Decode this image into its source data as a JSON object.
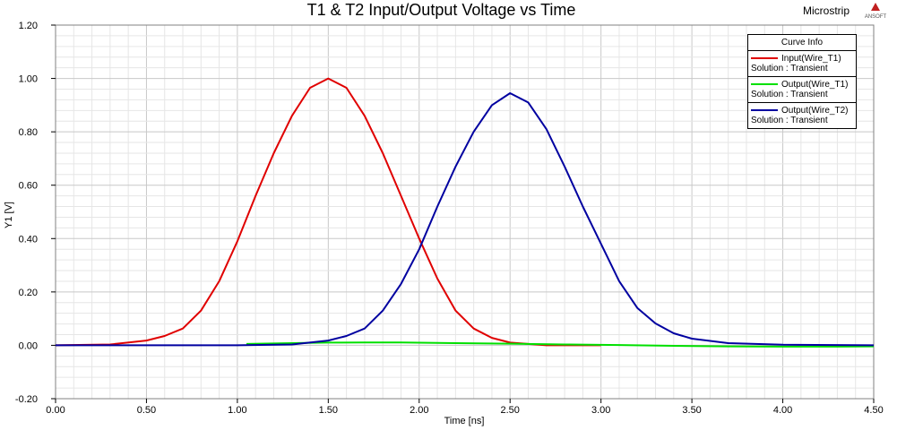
{
  "header": {
    "project": "Microstrip",
    "logo_text": "ANSOFT"
  },
  "legend": {
    "title": "Curve Info",
    "items": [
      {
        "label": "Input(Wire_T1)",
        "solution": "Solution : Transient",
        "color": "#e00000"
      },
      {
        "label": "Output(Wire_T1)",
        "solution": "Solution : Transient",
        "color": "#00e000"
      },
      {
        "label": "Output(Wire_T2)",
        "solution": "Solution : Transient",
        "color": "#0000a0"
      }
    ]
  },
  "chart_data": {
    "type": "line",
    "title": "T1 & T2 Input/Output Voltage vs Time",
    "xlabel": "Time [ns]",
    "ylabel": "Y1 [V]",
    "xlim": [
      0.0,
      4.5
    ],
    "ylim": [
      -0.2,
      1.2
    ],
    "xticks": [
      "0.00",
      "0.50",
      "1.00",
      "1.50",
      "2.00",
      "2.50",
      "3.00",
      "3.50",
      "4.00",
      "4.50"
    ],
    "yticks": [
      "-0.20",
      "0.00",
      "0.20",
      "0.40",
      "0.60",
      "0.80",
      "1.00",
      "1.20"
    ],
    "grid": true,
    "legend_position": "top-right",
    "series": [
      {
        "name": "Input(Wire_T1)",
        "color": "#e00000",
        "x": [
          0.0,
          0.3,
          0.5,
          0.6,
          0.7,
          0.8,
          0.9,
          1.0,
          1.1,
          1.2,
          1.3,
          1.4,
          1.5,
          1.6,
          1.7,
          1.8,
          1.9,
          2.0,
          2.1,
          2.2,
          2.3,
          2.4,
          2.5,
          2.7,
          3.0
        ],
        "y": [
          0.0,
          0.003,
          0.018,
          0.035,
          0.063,
          0.13,
          0.24,
          0.39,
          0.56,
          0.72,
          0.86,
          0.965,
          1.0,
          0.965,
          0.86,
          0.72,
          0.56,
          0.4,
          0.25,
          0.13,
          0.063,
          0.028,
          0.01,
          0.0,
          0.0
        ]
      },
      {
        "name": "Output(Wire_T1)",
        "color": "#00e000",
        "x": [
          1.05,
          1.3,
          1.5,
          1.7,
          1.9,
          2.2,
          2.5,
          2.8,
          3.1,
          3.4,
          3.7,
          4.0,
          4.3,
          4.5
        ],
        "y": [
          0.005,
          0.008,
          0.01,
          0.011,
          0.011,
          0.008,
          0.006,
          0.003,
          0.001,
          -0.002,
          -0.004,
          -0.005,
          -0.005,
          -0.004
        ]
      },
      {
        "name": "Output(Wire_T2)",
        "color": "#0000a0",
        "x": [
          0.0,
          1.0,
          1.3,
          1.5,
          1.6,
          1.7,
          1.8,
          1.9,
          2.0,
          2.1,
          2.2,
          2.3,
          2.4,
          2.5,
          2.6,
          2.7,
          2.8,
          2.9,
          3.0,
          3.1,
          3.2,
          3.3,
          3.4,
          3.5,
          3.7,
          4.0,
          4.5
        ],
        "y": [
          0.0,
          0.0,
          0.003,
          0.018,
          0.035,
          0.063,
          0.13,
          0.23,
          0.36,
          0.52,
          0.67,
          0.8,
          0.9,
          0.945,
          0.91,
          0.81,
          0.67,
          0.52,
          0.38,
          0.24,
          0.14,
          0.082,
          0.045,
          0.025,
          0.008,
          0.002,
          0.0
        ]
      }
    ]
  }
}
